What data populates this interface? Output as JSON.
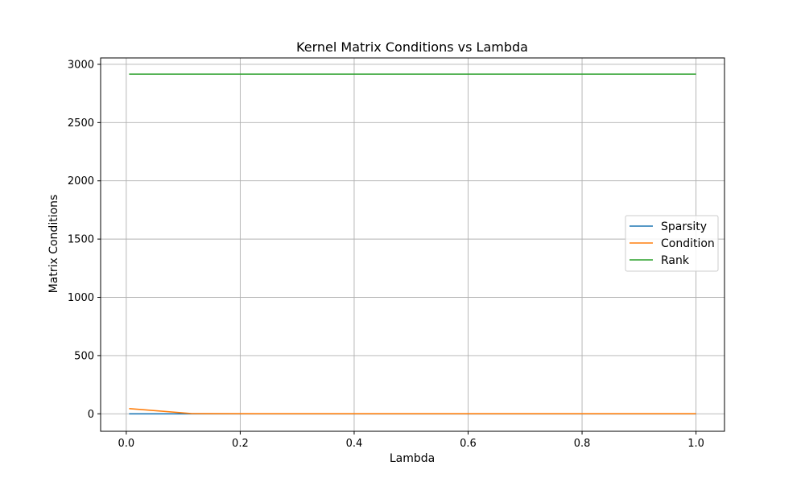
{
  "chart_data": {
    "type": "line",
    "title": "Kernel Matrix Conditions vs Lambda",
    "xlabel": "Lambda",
    "ylabel": "Matrix Conditions",
    "xlim": [
      -0.045,
      1.05
    ],
    "ylim": [
      -150,
      3055
    ],
    "xticks": [
      0.0,
      0.2,
      0.4,
      0.6,
      0.8,
      1.0
    ],
    "xtick_labels": [
      "0.0",
      "0.2",
      "0.4",
      "0.6",
      "0.8",
      "1.0"
    ],
    "yticks": [
      0,
      500,
      1000,
      1500,
      2000,
      2500,
      3000
    ],
    "ytick_labels": [
      "0",
      "500",
      "1000",
      "1500",
      "2000",
      "2500",
      "3000"
    ],
    "grid": true,
    "legend_position": "center-right",
    "x": [
      0.005,
      0.115,
      0.225,
      0.335,
      0.445,
      0.555,
      0.665,
      0.775,
      0.885,
      1.0
    ],
    "series": [
      {
        "name": "Sparsity",
        "color": "#1f77b4",
        "values": [
          0,
          0,
          0,
          0,
          0,
          0,
          0,
          0,
          0,
          0
        ]
      },
      {
        "name": "Condition",
        "color": "#ff7f0e",
        "values": [
          45,
          2,
          1,
          1,
          1,
          1,
          1,
          1,
          1,
          1
        ]
      },
      {
        "name": "Rank",
        "color": "#2ca02c",
        "values": [
          2916,
          2916,
          2916,
          2916,
          2916,
          2916,
          2916,
          2916,
          2916,
          2916
        ]
      }
    ]
  }
}
